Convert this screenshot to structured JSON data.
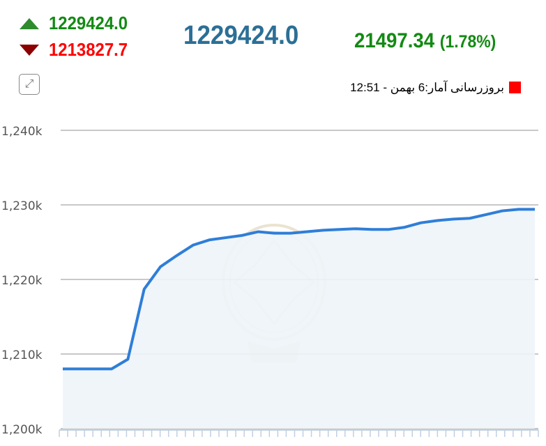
{
  "header": {
    "high": "1229424.0",
    "low": "1213827.7",
    "last": "1229424.0",
    "change": "21497.34",
    "change_pct": "(1.78%)",
    "update_text": "بروزرسانی آمار:6 بهمن - 12:51",
    "icons": {
      "high": "triangle-up-icon",
      "low": "triangle-down-icon",
      "expand": "expand-icon",
      "legend": "red-square-icon"
    },
    "colors": {
      "up": "#138a13",
      "down": "#ff0000",
      "last": "#2b6f96",
      "line": "#2f7ed8"
    }
  },
  "chart_data": {
    "type": "area",
    "ylim": [
      1200,
      1240
    ],
    "yticks": [
      "1,200k",
      "1,210k",
      "1,220k",
      "1,230k",
      "1,240k"
    ],
    "ytick_values": [
      1200,
      1210,
      1220,
      1230,
      1240
    ],
    "grid": true,
    "values": [
      1208,
      1208,
      1208,
      1208,
      1209.3,
      1218.7,
      1221.7,
      1223.2,
      1224.6,
      1225.3,
      1225.6,
      1225.9,
      1226.4,
      1226.2,
      1226.2,
      1226.4,
      1226.6,
      1226.7,
      1226.8,
      1226.7,
      1226.7,
      1227.0,
      1227.6,
      1227.9,
      1228.1,
      1228.2,
      1228.7,
      1229.2,
      1229.4,
      1229.4
    ]
  }
}
